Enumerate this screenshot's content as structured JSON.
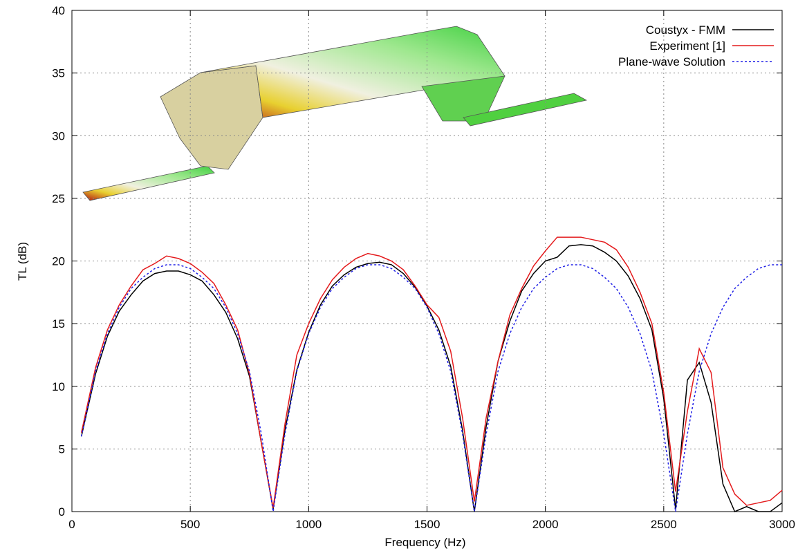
{
  "chart_data": {
    "type": "line",
    "xlabel": "Frequency (Hz)",
    "ylabel": "TL (dB)",
    "xlim": [
      0,
      3000
    ],
    "ylim": [
      0,
      40
    ],
    "xticks": [
      0,
      500,
      1000,
      1500,
      2000,
      2500,
      3000
    ],
    "yticks": [
      0,
      5,
      10,
      15,
      20,
      25,
      30,
      35,
      40
    ],
    "grid": true,
    "legend": "top-right",
    "x": [
      40,
      100,
      150,
      200,
      250,
      300,
      350,
      400,
      450,
      500,
      550,
      600,
      650,
      700,
      750,
      800,
      850,
      900,
      950,
      1000,
      1050,
      1100,
      1150,
      1200,
      1250,
      1300,
      1350,
      1400,
      1450,
      1500,
      1550,
      1600,
      1650,
      1700,
      1750,
      1800,
      1850,
      1900,
      1950,
      2000,
      2050,
      2100,
      2150,
      2200,
      2250,
      2300,
      2350,
      2400,
      2450,
      2500,
      2550,
      2600,
      2650,
      2700,
      2750,
      2800,
      2850,
      2900,
      2950,
      3000
    ],
    "series": [
      {
        "name": "Coustyx - FMM",
        "color": "#000000",
        "dash": "solid",
        "values": [
          6.0,
          11.0,
          14.0,
          16.0,
          17.3,
          18.4,
          19.0,
          19.2,
          19.2,
          18.9,
          18.4,
          17.3,
          15.9,
          13.8,
          10.8,
          5.5,
          0.2,
          6.5,
          11.3,
          14.3,
          16.5,
          18.0,
          18.9,
          19.5,
          19.8,
          19.9,
          19.7,
          19.0,
          17.9,
          16.4,
          14.5,
          11.6,
          6.5,
          0,
          6.8,
          12.0,
          15.2,
          17.6,
          19.0,
          20.0,
          20.3,
          21.2,
          21.3,
          21.2,
          20.7,
          20.0,
          18.8,
          17.0,
          14.5,
          9.0,
          0.2,
          10.5,
          11.9,
          8.7,
          2.2,
          0,
          0.4,
          0,
          0,
          0.7
        ]
      },
      {
        "name": "Experiment [1]",
        "color": "#e41a1c",
        "dash": "solid",
        "values": [
          6.3,
          11.5,
          14.5,
          16.5,
          18.0,
          19.3,
          19.8,
          20.4,
          20.2,
          19.8,
          19.1,
          18.2,
          16.5,
          14.5,
          11.0,
          5.5,
          0.3,
          7.0,
          12.5,
          15.0,
          17.0,
          18.5,
          19.5,
          20.2,
          20.6,
          20.4,
          20.0,
          19.3,
          18.0,
          16.5,
          15.5,
          12.8,
          7.5,
          0.8,
          7.5,
          12.0,
          15.7,
          17.8,
          19.6,
          20.8,
          21.9,
          21.9,
          21.9,
          21.7,
          21.5,
          20.9,
          19.5,
          17.5,
          15.0,
          9.5,
          1.6,
          8.0,
          13.0,
          11.1,
          3.5,
          1.4,
          0.5,
          0.7,
          0.9,
          1.7
        ]
      },
      {
        "name": "Plane-wave Solution",
        "color": "#1f1fe6",
        "dash": "dotted",
        "values": [
          6.0,
          11.2,
          14.2,
          16.3,
          17.8,
          18.7,
          19.4,
          19.7,
          19.7,
          19.4,
          18.7,
          17.8,
          16.3,
          14.2,
          11.2,
          6.2,
          0,
          6.2,
          11.2,
          14.2,
          16.3,
          17.8,
          18.7,
          19.4,
          19.7,
          19.7,
          19.4,
          18.7,
          17.8,
          16.3,
          14.2,
          11.2,
          6.2,
          0,
          6.2,
          11.2,
          14.2,
          16.3,
          17.8,
          18.7,
          19.4,
          19.7,
          19.7,
          19.4,
          18.7,
          17.8,
          16.3,
          14.2,
          11.2,
          6.2,
          0,
          6.2,
          11.2,
          14.2,
          16.3,
          17.8,
          18.7,
          19.4,
          19.7,
          19.7
        ]
      }
    ]
  }
}
